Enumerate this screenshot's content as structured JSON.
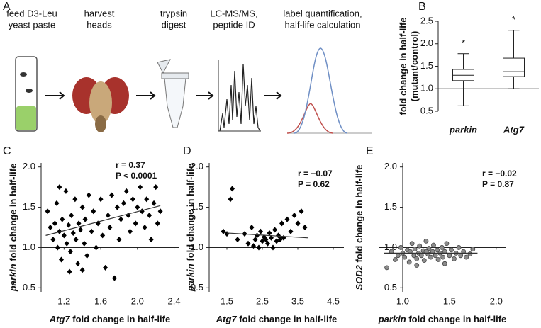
{
  "workflow": {
    "panel": "A",
    "steps": [
      [
        "feed D3-Leu",
        "yeast paste"
      ],
      [
        "harvest",
        "heads"
      ],
      [
        "trypsin",
        "digest"
      ],
      [
        "LC-MS/MS,",
        "peptide ID"
      ],
      [
        "label quantification,",
        "half-life calculation"
      ]
    ]
  },
  "chart_data": [
    {
      "type": "box",
      "panel": "B",
      "categories": [
        "parkin",
        "Atg7"
      ],
      "min": [
        0.62,
        1.0
      ],
      "q1": [
        1.18,
        1.27
      ],
      "median": [
        1.3,
        1.38
      ],
      "q3": [
        1.43,
        1.68
      ],
      "max": [
        1.78,
        2.3
      ],
      "annotations": [
        "*",
        "*"
      ],
      "ylabel": [
        "fold change in half-life",
        "(mutant/control)"
      ],
      "ylim": [
        0.5,
        2.5
      ],
      "yticks": [
        {
          "value": 0.5,
          "label": "0.5"
        },
        {
          "value": 1,
          "label": "1.0"
        },
        {
          "value": 1.5,
          "label": "1.5"
        },
        {
          "value": 2,
          "label": "2.0"
        },
        {
          "value": 2.5,
          "label": "2.5"
        }
      ],
      "hline": 1,
      "color": "#ffffff",
      "grid": false
    },
    {
      "type": "scatter",
      "panel": "C",
      "marker": "diamond",
      "color": "#000000",
      "x": [
        1.02,
        1.05,
        1.08,
        1.1,
        1.12,
        1.13,
        1.15,
        1.17,
        1.18,
        1.2,
        1.22,
        1.23,
        1.25,
        1.27,
        1.28,
        1.3,
        1.32,
        1.33,
        1.35,
        1.36,
        1.38,
        1.4,
        1.42,
        1.43,
        1.45,
        1.47,
        1.5,
        1.52,
        1.55,
        1.57,
        1.6,
        1.62,
        1.65,
        1.68,
        1.7,
        1.72,
        1.75,
        1.78,
        1.8,
        1.82,
        1.85,
        1.88,
        1.9,
        1.92,
        1.95,
        1.98,
        2.0,
        2.03,
        2.05,
        2.08,
        2.1,
        2.13,
        2.15,
        2.18,
        2.2,
        2.22,
        2.25,
        1.26,
        1.4,
        1.15
      ],
      "y": [
        1.45,
        1.25,
        1.1,
        1.3,
        1.55,
        1.0,
        1.2,
        0.85,
        1.35,
        1.15,
        1.7,
        1.05,
        1.28,
        0.95,
        1.4,
        1.18,
        1.6,
        1.1,
        0.8,
        1.3,
        1.22,
        1.5,
        1.05,
        1.35,
        0.9,
        1.65,
        1.2,
        1.45,
        1.0,
        1.3,
        1.6,
        1.15,
        0.75,
        1.4,
        1.25,
        1.65,
        0.62,
        1.5,
        1.1,
        1.35,
        1.55,
        1.7,
        1.4,
        1.2,
        1.6,
        1.3,
        1.5,
        1.75,
        1.45,
        1.25,
        1.6,
        1.4,
        1.1,
        1.55,
        1.75,
        1.3,
        1.45,
        0.7,
        0.72,
        1.75
      ],
      "fit": {
        "x": [
          1.0,
          2.25
        ],
        "y": [
          1.15,
          1.52
        ]
      },
      "stats": [
        "r = 0.37",
        "P < 0.0001"
      ],
      "xlabel": [
        "Atg7",
        " fold change in half-life"
      ],
      "ylabel": [
        "parkin",
        " fold change in half-life"
      ],
      "xlim": [
        0.95,
        2.45
      ],
      "xticks": [
        1.2,
        1.6,
        {
          "value": 2,
          "label": "2.0"
        },
        2.4
      ],
      "ylim": [
        0.45,
        2.05
      ],
      "yticks": [
        {
          "value": 0.5,
          "label": "0.5"
        },
        {
          "value": 1,
          "label": "1.0"
        },
        {
          "value": 1.5,
          "label": "1.5"
        },
        {
          "value": 2,
          "label": "2.0"
        }
      ],
      "xaxis_at": 1,
      "grid": false
    },
    {
      "type": "scatter",
      "panel": "D",
      "marker": "diamond",
      "color": "#000000",
      "x": [
        1.5,
        1.6,
        1.65,
        1.8,
        2.0,
        2.1,
        2.2,
        2.3,
        2.35,
        2.4,
        2.45,
        2.5,
        2.55,
        2.6,
        2.65,
        2.7,
        2.75,
        2.8,
        2.85,
        2.9,
        2.95,
        3.0,
        3.05,
        3.1,
        3.2,
        3.3,
        3.4,
        3.5,
        3.6,
        3.7,
        1.4,
        2.25
      ],
      "y": [
        1.17,
        1.6,
        1.73,
        1.1,
        1.17,
        1.05,
        1.25,
        1.1,
        1.15,
        1.0,
        1.2,
        1.08,
        1.13,
        1.1,
        1.05,
        1.18,
        1.12,
        1.0,
        1.22,
        1.08,
        1.15,
        1.1,
        1.3,
        1.12,
        1.35,
        1.2,
        1.4,
        1.3,
        1.45,
        1.25,
        1.2,
        1.02
      ],
      "fit": {
        "x": [
          1.5,
          3.8
        ],
        "y": [
          1.18,
          1.12
        ]
      },
      "stats": [
        "r = −0.07",
        "P = 0.62"
      ],
      "xlabel": [
        "Atg7",
        " fold change in half-life"
      ],
      "ylabel": [
        "parkin",
        " fold change in half-life"
      ],
      "xlim": [
        1.0,
        4.8
      ],
      "xticks": [
        1.5,
        2.5,
        3.5,
        4.5
      ],
      "ylim": [
        0.45,
        2.05
      ],
      "yticks": [
        {
          "value": 0.5,
          "label": "0.5"
        },
        {
          "value": 1,
          "label": "1.0"
        },
        {
          "value": 1.5,
          "label": "1.5"
        },
        {
          "value": 2,
          "label": "2.0"
        }
      ],
      "xaxis_at": 1,
      "grid": false
    },
    {
      "type": "scatter",
      "panel": "E",
      "marker": "circle",
      "color": "#8c8c8c",
      "x": [
        0.83,
        0.88,
        0.92,
        0.95,
        0.98,
        1.0,
        1.02,
        1.05,
        1.07,
        1.08,
        1.1,
        1.12,
        1.13,
        1.15,
        1.17,
        1.18,
        1.2,
        1.22,
        1.23,
        1.25,
        1.27,
        1.28,
        1.3,
        1.32,
        1.33,
        1.35,
        1.37,
        1.38,
        1.4,
        1.42,
        1.43,
        1.45,
        1.47,
        1.5,
        1.52,
        1.55,
        1.57,
        1.6,
        1.62,
        1.65,
        1.68,
        1.72,
        1.75,
        1.15,
        1.45,
        1.25
      ],
      "y": [
        0.75,
        0.95,
        0.85,
        0.9,
        1.0,
        0.93,
        0.88,
        0.97,
        0.82,
        0.95,
        1.05,
        0.9,
        0.98,
        0.86,
        0.93,
        1.02,
        0.9,
        0.96,
        0.84,
        1.08,
        0.92,
        0.99,
        0.88,
        0.95,
        1.03,
        0.9,
        0.97,
        0.85,
        0.93,
        1.0,
        0.88,
        0.95,
        1.05,
        0.9,
        0.97,
        0.86,
        0.93,
        1.0,
        0.9,
        0.95,
        0.88,
        0.92,
        0.98,
        0.78,
        0.8,
        0.95
      ],
      "fit": {
        "x": [
          0.8,
          1.8
        ],
        "y": [
          0.93,
          0.93
        ]
      },
      "stats": [
        "r = −0.02",
        "P = 0.87"
      ],
      "xlabel": [
        "parkin",
        " fold change in half-life"
      ],
      "ylabel": [
        "SOD2",
        " fold change in half-life"
      ],
      "xlim": [
        0.75,
        2.1
      ],
      "xticks": [
        {
          "value": 1,
          "label": "1.0"
        },
        1.5,
        {
          "value": 2,
          "label": "2.0"
        }
      ],
      "ylim": [
        0.45,
        2.05
      ],
      "yticks": [
        {
          "value": 0.5,
          "label": "0.5"
        },
        {
          "value": 1,
          "label": "1.0"
        },
        {
          "value": 1.5,
          "label": "1.5"
        },
        {
          "value": 2,
          "label": "2.0"
        }
      ],
      "xaxis_at": 1,
      "yaxis_at": 1,
      "grid": false
    }
  ]
}
